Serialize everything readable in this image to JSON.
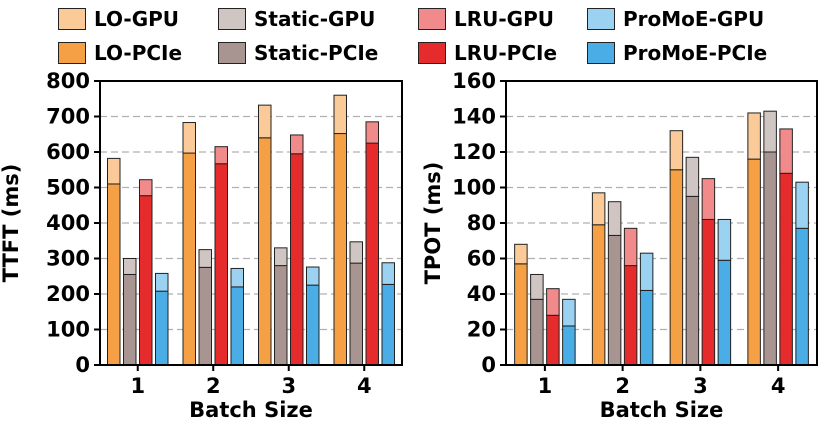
{
  "colors": {
    "LO": "#f5a044",
    "Static": "#a89592",
    "LRU": "#e52b2b",
    "ProMoE": "#4aade6",
    "outline": "#222222",
    "grid": "#b0b0b0"
  },
  "legend": [
    {
      "label": "LO-GPU",
      "series": "LO",
      "part": "gpu"
    },
    {
      "label": "Static-GPU",
      "series": "Static",
      "part": "gpu"
    },
    {
      "label": "LRU-GPU",
      "series": "LRU",
      "part": "gpu"
    },
    {
      "label": "ProMoE-GPU",
      "series": "ProMoE",
      "part": "gpu"
    },
    {
      "label": "LO-PCIe",
      "series": "LO",
      "part": "pcie"
    },
    {
      "label": "Static-PCIe",
      "series": "Static",
      "part": "pcie"
    },
    {
      "label": "LRU-PCIe",
      "series": "LRU",
      "part": "pcie"
    },
    {
      "label": "ProMoE-PCIe",
      "series": "ProMoE",
      "part": "pcie"
    }
  ],
  "chart_data": [
    {
      "type": "bar",
      "stacked": true,
      "xlabel": "Batch Size",
      "ylabel": "TTFT (ms)",
      "categories": [
        "1",
        "2",
        "3",
        "4"
      ],
      "ylim": [
        0,
        800
      ],
      "yticks": [
        0,
        100,
        200,
        300,
        400,
        500,
        600,
        700,
        800
      ],
      "grid": "horizontal dashed",
      "series": [
        {
          "name": "LO",
          "pcie": [
            510,
            597,
            640,
            652
          ],
          "total": [
            582,
            683,
            732,
            760
          ]
        },
        {
          "name": "Static",
          "pcie": [
            255,
            275,
            280,
            287
          ],
          "total": [
            300,
            325,
            330,
            347
          ]
        },
        {
          "name": "LRU",
          "pcie": [
            477,
            567,
            595,
            625
          ],
          "total": [
            522,
            615,
            648,
            685
          ]
        },
        {
          "name": "ProMoE",
          "pcie": [
            208,
            220,
            225,
            227
          ],
          "total": [
            258,
            272,
            276,
            288
          ]
        }
      ]
    },
    {
      "type": "bar",
      "stacked": true,
      "xlabel": "Batch Size",
      "ylabel": "TPOT (ms)",
      "categories": [
        "1",
        "2",
        "3",
        "4"
      ],
      "ylim": [
        0,
        160
      ],
      "yticks": [
        0,
        20,
        40,
        60,
        80,
        100,
        120,
        140,
        160
      ],
      "grid": "horizontal dashed",
      "series": [
        {
          "name": "LO",
          "pcie": [
            57,
            79,
            110,
            116
          ],
          "total": [
            68,
            97,
            132,
            142
          ]
        },
        {
          "name": "Static",
          "pcie": [
            37,
            73,
            95,
            120
          ],
          "total": [
            51,
            92,
            117,
            143
          ]
        },
        {
          "name": "LRU",
          "pcie": [
            28,
            56,
            82,
            108
          ],
          "total": [
            43,
            77,
            105,
            133
          ]
        },
        {
          "name": "ProMoE",
          "pcie": [
            22,
            42,
            59,
            77
          ],
          "total": [
            37,
            63,
            82,
            103
          ]
        }
      ]
    }
  ]
}
